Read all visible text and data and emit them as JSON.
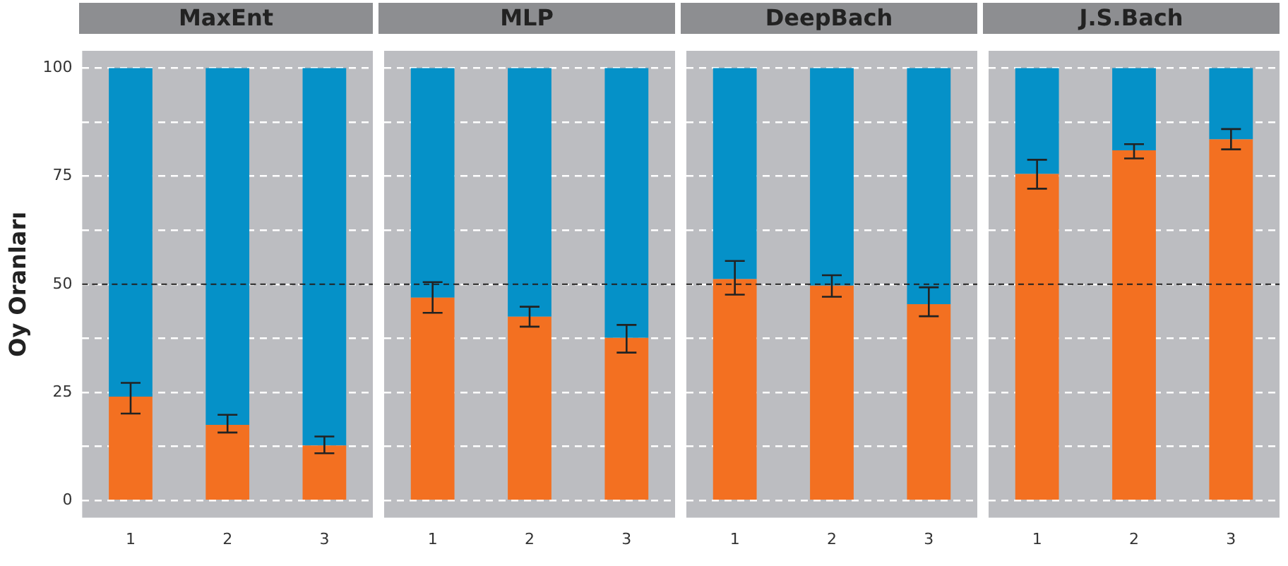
{
  "chart_data": [
    {
      "type": "bar",
      "title": "MaxEnt",
      "ylabel": "Oy Oranları",
      "categories": [
        "1",
        "2",
        "3"
      ],
      "stacked": true,
      "ylim": [
        -4,
        104
      ],
      "yticks": [
        0,
        {
          "value": 12.5,
          "label": null
        },
        25,
        {
          "value": 37.5,
          "label": null
        },
        50,
        {
          "value": 62.5,
          "label": null
        },
        75,
        {
          "value": 87.5,
          "label": null
        },
        100
      ],
      "grid": "y",
      "ref_lines": [
        {
          "axis": "y",
          "value": 50,
          "color": "#222222",
          "line_style": "dashed"
        }
      ],
      "series": [
        {
          "color": "#f37021",
          "values": [
            24,
            17.5,
            12.7
          ],
          "errors": [
            [
              20.1,
              27.2
            ],
            [
              15.7,
              19.8
            ],
            [
              10.9,
              14.8
            ]
          ]
        },
        {
          "color": "#0591c8",
          "values": [
            76,
            82.5,
            87.3
          ]
        }
      ]
    },
    {
      "type": "bar",
      "title": "MLP",
      "categories": [
        "1",
        "2",
        "3"
      ],
      "stacked": true,
      "ylim": [
        -4,
        104
      ],
      "yticks": [
        0,
        {
          "value": 12.5,
          "label": null
        },
        25,
        {
          "value": 37.5,
          "label": null
        },
        50,
        {
          "value": 62.5,
          "label": null
        },
        75,
        {
          "value": 87.5,
          "label": null
        },
        100
      ],
      "grid": "y",
      "tick_labels": "x",
      "ref_lines": [
        {
          "axis": "y",
          "value": 50,
          "color": "#222222",
          "line_style": "dashed"
        }
      ],
      "series": [
        {
          "color": "#f37021",
          "values": [
            46.9,
            42.5,
            37.6
          ],
          "errors": [
            [
              43.4,
              50.5
            ],
            [
              40.2,
              44.8
            ],
            [
              34.2,
              40.6
            ]
          ]
        },
        {
          "color": "#0591c8",
          "values": [
            53.1,
            57.5,
            62.4
          ]
        }
      ]
    },
    {
      "type": "bar",
      "title": "DeepBach",
      "categories": [
        "1",
        "2",
        "3"
      ],
      "stacked": true,
      "ylim": [
        -4,
        104
      ],
      "yticks": [
        0,
        {
          "value": 12.5,
          "label": null
        },
        25,
        {
          "value": 37.5,
          "label": null
        },
        50,
        {
          "value": 62.5,
          "label": null
        },
        75,
        {
          "value": 87.5,
          "label": null
        },
        100
      ],
      "grid": "y",
      "tick_labels": "x",
      "ref_lines": [
        {
          "axis": "y",
          "value": 50,
          "color": "#222222",
          "line_style": "dashed"
        }
      ],
      "series": [
        {
          "color": "#f37021",
          "values": [
            51.2,
            49.7,
            45.4
          ],
          "errors": [
            [
              47.6,
              55.4
            ],
            [
              47.1,
              52.1
            ],
            [
              42.6,
              49.3
            ]
          ]
        },
        {
          "color": "#0591c8",
          "values": [
            48.8,
            50.3,
            54.6
          ]
        }
      ]
    },
    {
      "type": "bar",
      "title": "J.S.Bach",
      "categories": [
        "1",
        "2",
        "3"
      ],
      "stacked": true,
      "ylim": [
        -4,
        104
      ],
      "yticks": [
        0,
        {
          "value": 12.5,
          "label": null
        },
        25,
        {
          "value": 37.5,
          "label": null
        },
        50,
        {
          "value": 62.5,
          "label": null
        },
        75,
        {
          "value": 87.5,
          "label": null
        },
        100
      ],
      "grid": "y",
      "tick_labels": "x",
      "ref_lines": [
        {
          "axis": "y",
          "value": 50,
          "color": "#222222",
          "line_style": "dashed"
        }
      ],
      "series": [
        {
          "color": "#f37021",
          "values": [
            75.5,
            81,
            83.5
          ],
          "errors": [
            [
              72.1,
              78.8
            ],
            [
              79.1,
              82.4
            ],
            [
              81.2,
              85.9
            ]
          ]
        },
        {
          "color": "#0591c8",
          "values": [
            24.5,
            19,
            16.5
          ]
        }
      ]
    }
  ]
}
